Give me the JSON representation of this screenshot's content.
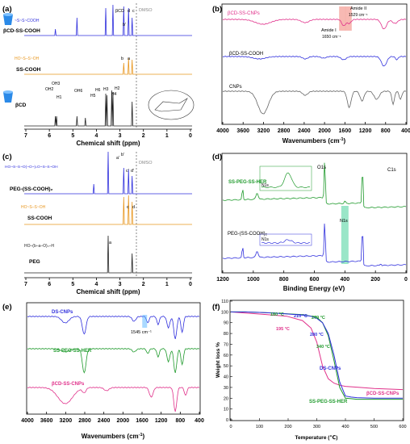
{
  "chart_data": [
    {
      "panel": "(a)",
      "type": "line",
      "xlabel": "Chemical shift (ppm)",
      "xlim": [
        7,
        0
      ],
      "xticks": [
        "7",
        "6",
        "5",
        "4",
        "3",
        "2",
        "1",
        "0"
      ],
      "series": [
        {
          "name": "βCD-SS-COOH",
          "color": "#3030dd"
        },
        {
          "name": "SS-COOH",
          "color": "#e8961e"
        },
        {
          "name": "βCD",
          "color": "#222222"
        }
      ],
      "annotations": [
        "DMSO",
        "βCD",
        "d",
        "c",
        "b'",
        "a",
        "b",
        "H1",
        "H5",
        "H6",
        "H2",
        "H4",
        "OH2",
        "OH3",
        "OH6",
        "H3",
        "H2",
        "H4"
      ],
      "peaks_ppm": {
        "βCD-SS-COOH": [
          5.7,
          4.8,
          3.6,
          3.3,
          2.85,
          2.65,
          2.5
        ],
        "SS-COOH": [
          2.85,
          2.65,
          2.5
        ],
        "βCD": [
          5.7,
          5.65,
          4.8,
          4.45,
          3.6,
          3.55,
          3.35,
          3.3,
          2.5
        ]
      }
    },
    {
      "panel": "(b)",
      "type": "line",
      "xlabel": "Wavenumbers (cm",
      "xlabel_sup": "-1",
      "xlabel_end": ")",
      "xlim": [
        4000,
        400
      ],
      "xticks": [
        "4000",
        "3600",
        "3200",
        "2800",
        "2400",
        "2000",
        "1600",
        "1200",
        "800",
        "400"
      ],
      "series": [
        {
          "name": "βCD-SS-CNPs",
          "color": "#e0308a"
        },
        {
          "name": "βCD-SS-COOH",
          "color": "#3030dd"
        },
        {
          "name": "CNPs",
          "color": "#666666"
        }
      ],
      "annotations": [
        "Amide II",
        "1529 cm⁻¹",
        "Amide I",
        "1650 cm⁻¹"
      ],
      "highlight_bands_cm": [
        1650,
        1529
      ]
    },
    {
      "panel": "(c)",
      "type": "line",
      "xlabel": "Chemical shift (ppm)",
      "xlim": [
        7,
        0
      ],
      "xticks": [
        "7",
        "6",
        "5",
        "4",
        "3",
        "2",
        "1",
        "0"
      ],
      "series": [
        {
          "name": "PEG-(SS-COOH)₂",
          "color": "#3030dd"
        },
        {
          "name": "SS-COOH",
          "color": "#e8961e"
        },
        {
          "name": "PEG",
          "color": "#222222"
        }
      ],
      "annotations": [
        "DMSO",
        "a'",
        "b'",
        "c'",
        "d'",
        "c",
        "d",
        "a"
      ],
      "peaks_ppm": {
        "PEG-(SS-COOH)₂": [
          4.1,
          3.5,
          2.85,
          2.65,
          2.5
        ],
        "SS-COOH": [
          2.85,
          2.65,
          2.5
        ],
        "PEG": [
          3.5,
          2.5
        ]
      }
    },
    {
      "panel": "(d)",
      "type": "line",
      "xlabel": "Binding Energy (eV)",
      "xlim": [
        1200,
        0
      ],
      "xticks": [
        "1200",
        "1000",
        "800",
        "600",
        "400",
        "200",
        "0"
      ],
      "series": [
        {
          "name": "SS-PEG-SS-HER",
          "color": "#1f9a2c"
        },
        {
          "name": "PEG-(SS-COOH)₂",
          "color": "#3030dd"
        }
      ],
      "annotations": [
        "O1s",
        "C1s",
        "N1s",
        "N1s",
        "N1s"
      ],
      "peaks_eV": {
        "O1s": 532,
        "N1s": 400,
        "C1s": 285
      }
    },
    {
      "panel": "(e)",
      "type": "line",
      "xlabel": "Wavenumbers (cm",
      "xlabel_sup": "-1",
      "xlabel_end": ")",
      "xlim": [
        4000,
        400
      ],
      "xticks": [
        "4000",
        "3600",
        "3200",
        "2800",
        "2400",
        "2000",
        "1600",
        "1200",
        "800",
        "400"
      ],
      "series": [
        {
          "name": "DS-CNPs",
          "color": "#3030dd"
        },
        {
          "name": "SS-PEG-SS-HER",
          "color": "#1f9a2c"
        },
        {
          "name": "βCD-SS-CNPs",
          "color": "#e0308a"
        }
      ],
      "annotations": [
        "1545 cm⁻¹"
      ]
    },
    {
      "panel": "(f)",
      "type": "line",
      "xlabel": "Temperature (℃)",
      "ylabel": "Weight loss %",
      "xlim": [
        0,
        600
      ],
      "ylim": [
        0,
        110
      ],
      "xticks": [
        "0",
        "100",
        "200",
        "300",
        "400",
        "500",
        "600"
      ],
      "yticks": [
        "0",
        "10",
        "20",
        "30",
        "40",
        "50",
        "60",
        "70",
        "80",
        "90",
        "100",
        "110"
      ],
      "series": [
        {
          "name": "DS-CNPs",
          "color": "#3030dd",
          "x": [
            0,
            50,
            100,
            150,
            200,
            250,
            280,
            300,
            320,
            340,
            360,
            380,
            400,
            420,
            440,
            500,
            600
          ],
          "y": [
            100,
            100,
            99.5,
            99,
            98,
            97,
            96,
            94,
            90,
            80,
            60,
            35,
            22,
            21,
            20.5,
            20,
            20
          ]
        },
        {
          "name": "SS-PEG-SS-HER",
          "color": "#1f9a2c",
          "x": [
            0,
            50,
            100,
            150,
            180,
            250,
            300,
            320,
            340,
            360,
            380,
            400,
            420,
            440,
            500,
            600
          ],
          "y": [
            100,
            100,
            99.5,
            99,
            98.5,
            97.5,
            95,
            90,
            78,
            55,
            30,
            20,
            19.5,
            19,
            19,
            19
          ]
        },
        {
          "name": "βCD-SS-CNPs",
          "color": "#e0308a",
          "x": [
            0,
            50,
            100,
            150,
            195,
            250,
            280,
            300,
            320,
            340,
            360,
            380,
            400,
            450,
            500,
            600
          ],
          "y": [
            100,
            99,
            98,
            97,
            96,
            92,
            85,
            72,
            50,
            38,
            34,
            32,
            31,
            30,
            29,
            28
          ]
        }
      ],
      "annotations": [
        {
          "text": "180 °C",
          "color": "#1f9a2c",
          "x": 180,
          "y": 98.5
        },
        {
          "text": "210 °C",
          "color": "#3030dd",
          "x": 210,
          "y": 98
        },
        {
          "text": "270 °C",
          "color": "#1f9a2c",
          "x": 270,
          "y": 97.5
        },
        {
          "text": "195 °C",
          "color": "#e0308a",
          "x": 195,
          "y": 96
        },
        {
          "text": "280 °C",
          "color": "#3030dd",
          "x": 280,
          "y": 96
        },
        {
          "text": "340 °C",
          "color": "#1f9a2c",
          "x": 340,
          "y": 78
        },
        {
          "text": "DS-CNPs",
          "color": "#3030dd"
        },
        {
          "text": "βCD-SS-CNPs",
          "color": "#e0308a"
        },
        {
          "text": "SS-PEG-SS-HER",
          "color": "#1f9a2c"
        }
      ]
    }
  ]
}
